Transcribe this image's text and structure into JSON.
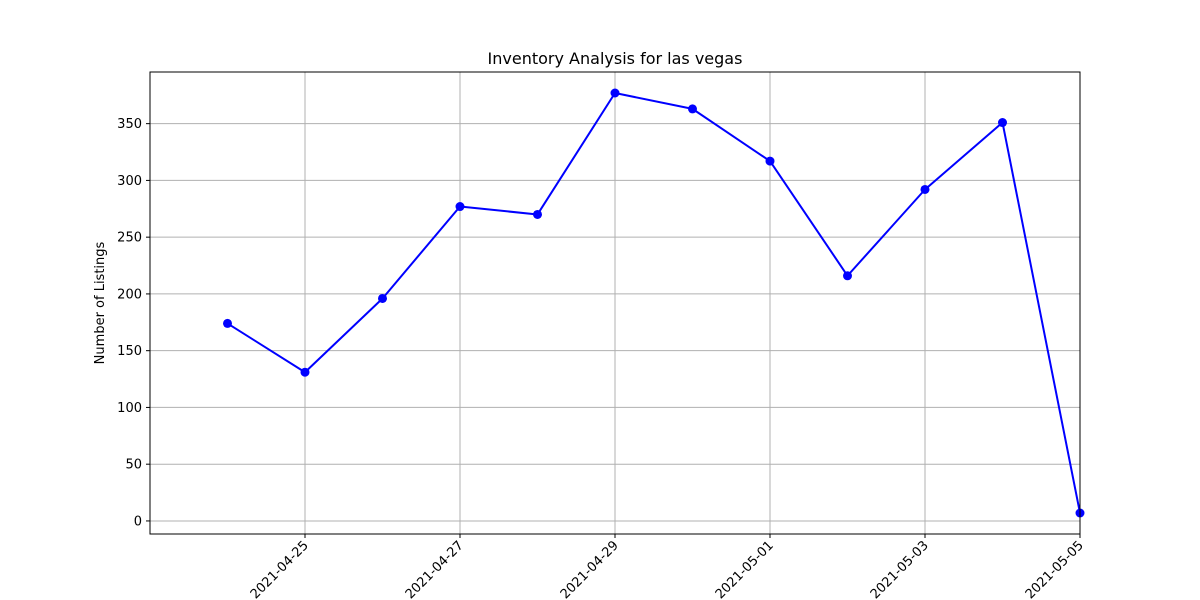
{
  "chart_data": {
    "type": "line",
    "title": "Inventory Analysis for las vegas",
    "xlabel": "",
    "ylabel": "Number of Listings",
    "x": [
      "2021-04-24",
      "2021-04-25",
      "2021-04-26",
      "2021-04-27",
      "2021-04-28",
      "2021-04-29",
      "2021-04-30",
      "2021-05-01",
      "2021-05-02",
      "2021-05-03",
      "2021-05-04",
      "2021-05-05"
    ],
    "series": [
      {
        "values": [
          174,
          131,
          196,
          277,
          270,
          377,
          363,
          317,
          216,
          292,
          351,
          7
        ],
        "color": "#0000ff",
        "marker": "circle"
      }
    ],
    "x_tick_labels": [
      "2021-04-25",
      "2021-04-27",
      "2021-04-29",
      "2021-05-01",
      "2021-05-03",
      "2021-05-05"
    ],
    "y_ticks": [
      0,
      50,
      100,
      150,
      200,
      250,
      300,
      350
    ],
    "ylim": [
      -11.5,
      395.5
    ],
    "xlim": [
      "2021-04-23",
      "2021-05-05"
    ],
    "grid": true,
    "legend": "none"
  }
}
